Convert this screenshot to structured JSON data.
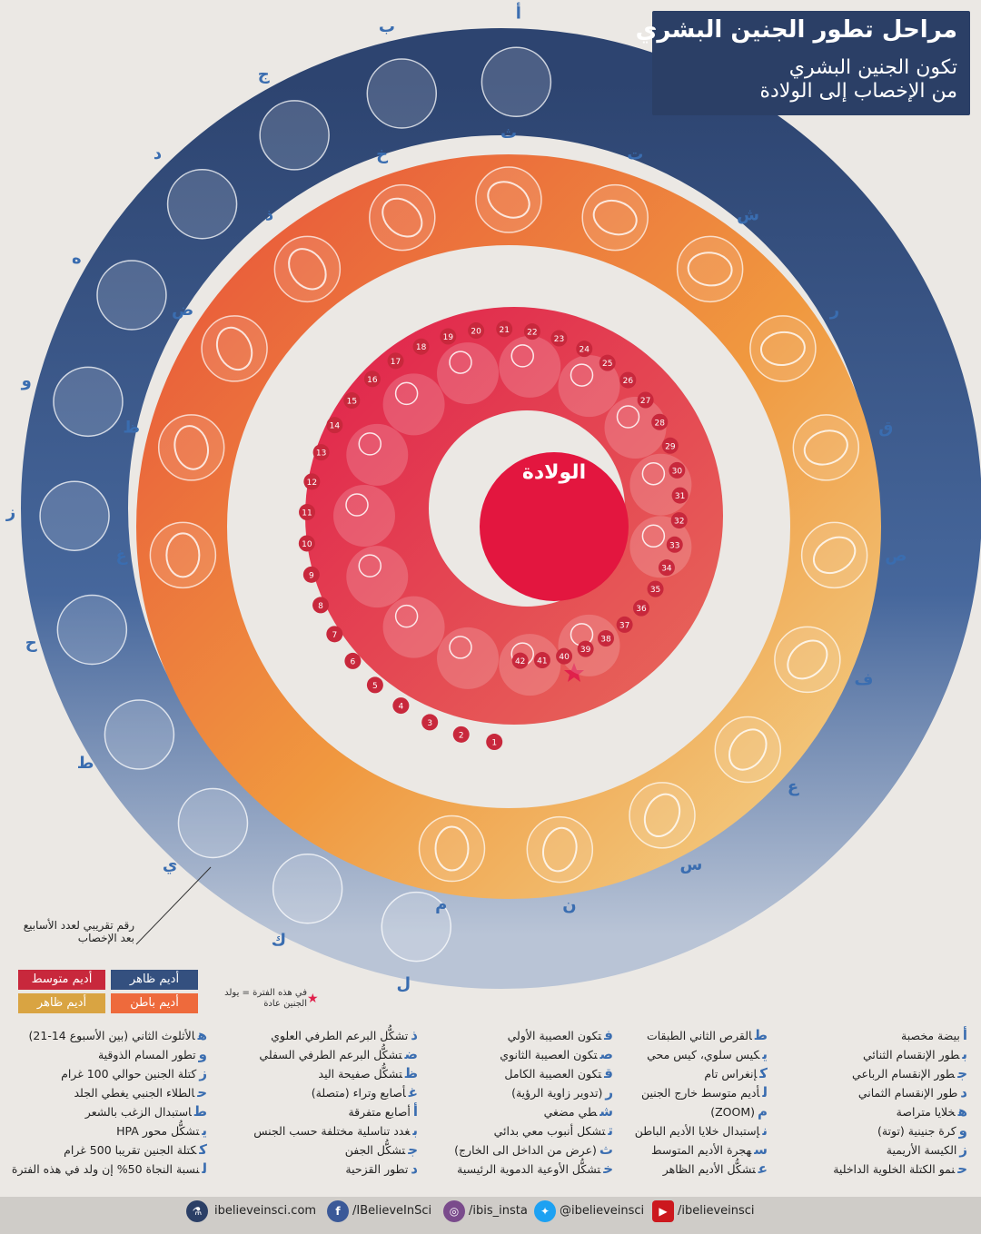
{
  "title": {
    "main": "مراحل تطور الجنين البشري",
    "sub1": "تكون الجنين البشري",
    "sub2": "من الإخصاب إلى الولادة"
  },
  "center_label": "الولادة",
  "colors": {
    "outer_ring": "#34507f",
    "middle_ring_start": "#ee6a3c",
    "middle_ring_end": "#f0c27a",
    "inner_ring": "#e0204b",
    "accent_letter": "#3a6db0"
  },
  "outer_letters": [
    "أ",
    "ب",
    "ج",
    "د",
    "ه",
    "و",
    "ز",
    "ح",
    "ط",
    "ي",
    "ك",
    "ل"
  ],
  "middle_letters": [
    "م",
    "ن",
    "س",
    "ع",
    "ف",
    "ص",
    "ق",
    "ر",
    "ش",
    "ت",
    "ث",
    "خ",
    "ذ",
    "ض",
    "ظ",
    "غ",
    "أ1",
    "ب1",
    "ج1",
    "د1",
    "ه1",
    "و1",
    "ز1",
    "ح1",
    "ط1",
    "ي1",
    "ك1",
    "ل1"
  ],
  "week_numbers_outer": [
    "1",
    "2",
    "3",
    "4",
    "5",
    "6",
    "7",
    "8",
    "9",
    "10",
    "11",
    "12",
    "13",
    "14",
    "15",
    "16",
    "17",
    "18",
    "19",
    "20",
    "21",
    "22",
    "23",
    "24",
    "25",
    "26",
    "27",
    "28",
    "29",
    "30",
    "31",
    "32",
    "33",
    "34",
    "35",
    "36",
    "37",
    "38",
    "39",
    "40",
    "41",
    "42"
  ],
  "note_label": "رقم تقريبي لعدد الأسابيع بعد الإخصاب",
  "legend": [
    {
      "label": "أديم ظاهر",
      "color": "#34507f"
    },
    {
      "label": "أديم متوسط",
      "color": "#c8283c"
    },
    {
      "label": "أديم باطن",
      "color": "#ee6a3c"
    },
    {
      "label": "أديم ظاهر",
      "color": "#d9a442"
    }
  ],
  "star_note": "في هذه الفترة = يولد الجنين عادة",
  "glossary": {
    "col1": [
      {
        "l": "أ",
        "t": "بيضة مخصبة"
      },
      {
        "l": "ب",
        "t": "طور الإنقسام الثنائي"
      },
      {
        "l": "ج",
        "t": "طور الإنقسام الرباعي"
      },
      {
        "l": "د",
        "t": "طور الإنقسام الثماني"
      },
      {
        "l": "ه",
        "t": "خلايا متراصة"
      },
      {
        "l": "و",
        "t": "كرة جنينية (توتة)"
      },
      {
        "l": "ز",
        "t": "الكيسة الأريمية"
      },
      {
        "l": "ح",
        "t": "نمو الكتلة الخلوية الداخلية"
      }
    ],
    "col2": [
      {
        "l": "ط",
        "t": "القرص الثاني الطبقات"
      },
      {
        "l": "ي",
        "t": "كيس سلوي، كيس محي"
      },
      {
        "l": "ك",
        "t": "إنغراس تام"
      },
      {
        "l": "ل",
        "t": "أديم متوسط خارج الجنين"
      },
      {
        "l": "م",
        "t": "(ZOOM)"
      },
      {
        "l": "ن",
        "t": "إستبدال خلايا الأديم الباطن"
      },
      {
        "l": "س",
        "t": "هجرة الأديم المتوسط"
      },
      {
        "l": "ع",
        "t": "تشكُّل الأديم الظاهر"
      }
    ],
    "col3": [
      {
        "l": "ف",
        "t": "تكون العصيبة الأولي"
      },
      {
        "l": "ص",
        "t": "تكون العصيبة الثانوي"
      },
      {
        "l": "ق",
        "t": "تكون العصيبة الكامل"
      },
      {
        "l": "ر",
        "t": "(تدوير زاوية الرؤية)"
      },
      {
        "l": "ش",
        "t": "طي مضغي"
      },
      {
        "l": "ت",
        "t": "تشكل أنبوب معي بدائي"
      },
      {
        "l": "ث",
        "t": "(عرض من الداخل الى الخارج)"
      },
      {
        "l": "خ",
        "t": "تشكُّل الأوعية الدموية الرئيسية"
      }
    ],
    "col4": [
      {
        "l": "ذ",
        "t": "تشكُّل البرعم الطرفي العلوي"
      },
      {
        "l": "ض",
        "t": "تشكُّل البرعم الطرفي السفلي"
      },
      {
        "l": "ظ",
        "t": "تشكُّل صفيحة اليد"
      },
      {
        "l": "غ",
        "t": "أصابع وتراء (متصلة)"
      },
      {
        "l": "أ",
        "t": "أصابع متفرقة"
      },
      {
        "l": "ب",
        "t": "غدد تناسلية مختلفة حسب الجنس"
      },
      {
        "l": "ج",
        "t": "تشكُّل الجفن"
      },
      {
        "l": "د",
        "t": "تطور القزحية"
      }
    ],
    "col5": [
      {
        "l": "ه",
        "t": "الأثلوث الثاني (بين الأسبوع 14-21)"
      },
      {
        "l": "و",
        "t": "تطور المسام الذوقية"
      },
      {
        "l": "ز",
        "t": "كتلة الجنين حوالي 100 غرام"
      },
      {
        "l": "ح",
        "t": "الطلاء الجنبي يغطي الجلد"
      },
      {
        "l": "ط",
        "t": "استبدال الزغب بالشعر"
      },
      {
        "l": "ي",
        "t": "تشكُّل محور HPA"
      },
      {
        "l": "ك",
        "t": "كتلة الجنين تقريبا 500 غرام"
      },
      {
        "l": "ل",
        "t": "نسبة النجاة 50% إن ولد في هذه الفترة"
      }
    ]
  },
  "footer": {
    "site": "ibelieveinsci.com",
    "facebook": "/IBelieveInSci",
    "instagram": "/ibis_insta",
    "twitter": "@ibelieveinsci",
    "youtube": "/ibelieveinsci"
  }
}
